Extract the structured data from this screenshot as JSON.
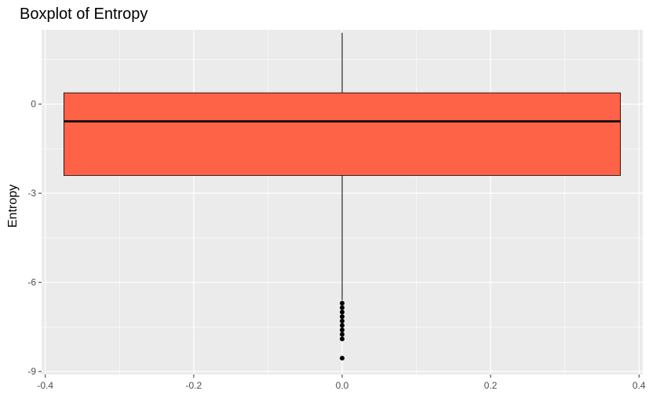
{
  "chart_data": {
    "type": "boxplot",
    "title": "Boxplot of Entropy",
    "xlabel": "",
    "ylabel": "Entropy",
    "x_ticks": [
      -0.4,
      -0.2,
      0.0,
      0.2,
      0.4
    ],
    "x_tick_labels": [
      "-0.4",
      "-0.2",
      "0.0",
      "0.2",
      "0.4"
    ],
    "y_ticks": [
      0,
      -3,
      -6,
      -9
    ],
    "y_tick_labels": [
      "0",
      "-3",
      "-6",
      "-9"
    ],
    "xlim": [
      -0.405,
      0.405
    ],
    "ylim": [
      -9.1,
      2.5
    ],
    "grid": true,
    "box": {
      "x_left": -0.375,
      "x_right": 0.375,
      "x_center": 0.0,
      "q1": -2.4,
      "median": -0.58,
      "q3": 0.38,
      "whisker_low": -6.6,
      "whisker_high": 2.4,
      "outliers": [
        -6.7,
        -6.85,
        -7.0,
        -7.15,
        -7.3,
        -7.45,
        -7.6,
        -7.75,
        -7.9,
        -8.55
      ]
    },
    "colors": {
      "box_fill": "#FF6347",
      "panel_bg": "#EBEBEB",
      "grid": "#FFFFFF",
      "text": "#4D4D4D"
    }
  }
}
